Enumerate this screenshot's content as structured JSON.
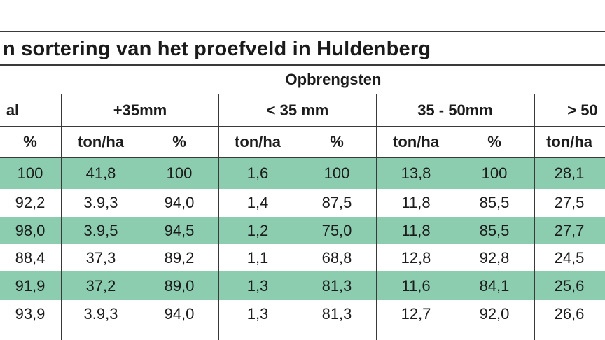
{
  "table": {
    "title": "n sortering van het proefveld in Huldenberg",
    "section_header": "Opbrengsten",
    "group_headers": [
      "al",
      "+35mm",
      "< 35 mm",
      "35 - 50mm",
      "> 50"
    ],
    "sub_headers": [
      "%",
      "ton/ha",
      "%",
      "ton/ha",
      "%",
      "ton/ha",
      "%",
      "ton/ha"
    ],
    "rows": [
      [
        "100",
        "41,8",
        "100",
        "1,6",
        "100",
        "13,8",
        "100",
        "28,1"
      ],
      [
        "92,2",
        "3.9,3",
        "94,0",
        "1,4",
        "87,5",
        "11,8",
        "85,5",
        "27,5"
      ],
      [
        "98,0",
        "3.9,5",
        "94,5",
        "1,2",
        "75,0",
        "11,8",
        "85,5",
        "27,7"
      ],
      [
        "88,4",
        "37,3",
        "89,2",
        "1,1",
        "68,8",
        "12,8",
        "92,8",
        "24,5"
      ],
      [
        "91,9",
        "37,2",
        "89,0",
        "1,3",
        "81,3",
        "11,6",
        "84,1",
        "25,6"
      ],
      [
        "93,9",
        "3.9,3",
        "94,0",
        "1,3",
        "81,3",
        "12,7",
        "92,0",
        "26,6"
      ]
    ],
    "colors": {
      "band": "#8ccdb0",
      "plain": "#ffffff",
      "lines": "#3a3a3a",
      "text": "#1c1c1c"
    }
  }
}
